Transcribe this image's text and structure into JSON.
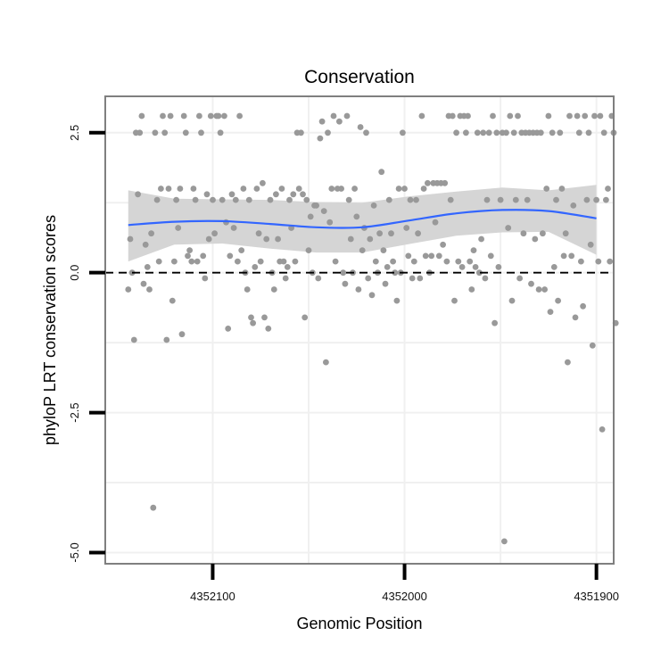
{
  "chart_data": {
    "type": "scatter",
    "title": "Conservation",
    "xlabel": "Genomic Position",
    "ylabel": "phyloP LRT conservation scores",
    "x_reversed": true,
    "xlim": [
      4352156,
      4351891
    ],
    "ylim": [
      -5.2,
      3.15
    ],
    "x_ticks": [
      4352100,
      4352000,
      4351900
    ],
    "y_ticks": [
      2.5,
      0.0,
      -2.5,
      -5.0
    ],
    "x_tick_labels": [
      "4352100",
      "4352000",
      "4351900"
    ],
    "y_tick_labels": [
      "2.5",
      "0.0",
      "-2.5",
      "-5.0"
    ],
    "grid": true,
    "reference_line": {
      "y": 0.0,
      "style": "dashed"
    },
    "colors": {
      "points": "#999999",
      "smooth": "#3366ff",
      "ribbon": "#d3d3d3",
      "frame": "#7f7f7f"
    },
    "smooth": {
      "x": [
        4352144,
        4352120,
        4352095,
        4352070,
        4352046,
        4352022,
        4351998,
        4351973,
        4351949,
        4351925,
        4351900
      ],
      "y": [
        0.85,
        0.91,
        0.92,
        0.87,
        0.81,
        0.81,
        0.93,
        1.06,
        1.12,
        1.1,
        0.97
      ],
      "upper": [
        1.47,
        1.32,
        1.31,
        1.3,
        1.26,
        1.25,
        1.36,
        1.45,
        1.52,
        1.47,
        1.57
      ],
      "lower": [
        0.2,
        0.5,
        0.52,
        0.43,
        0.36,
        0.36,
        0.51,
        0.66,
        0.72,
        0.73,
        0.32
      ]
    },
    "points": [
      {
        "x": 4352144,
        "y": -0.3
      },
      {
        "x": 4352143,
        "y": 0.6
      },
      {
        "x": 4352142,
        "y": 0.0
      },
      {
        "x": 4352141,
        "y": -1.2
      },
      {
        "x": 4352140,
        "y": 2.5
      },
      {
        "x": 4352139,
        "y": 1.4
      },
      {
        "x": 4352138,
        "y": 2.5
      },
      {
        "x": 4352137,
        "y": 2.8
      },
      {
        "x": 4352136,
        "y": -0.2
      },
      {
        "x": 4352135,
        "y": 0.5
      },
      {
        "x": 4352134,
        "y": 0.1
      },
      {
        "x": 4352133,
        "y": -0.3
      },
      {
        "x": 4352132,
        "y": 0.7
      },
      {
        "x": 4352131,
        "y": -4.2
      },
      {
        "x": 4352130,
        "y": 2.5
      },
      {
        "x": 4352129,
        "y": 1.3
      },
      {
        "x": 4352128,
        "y": 0.2
      },
      {
        "x": 4352127,
        "y": 1.5
      },
      {
        "x": 4352126,
        "y": 2.8
      },
      {
        "x": 4352125,
        "y": 2.5
      },
      {
        "x": 4352124,
        "y": -1.2
      },
      {
        "x": 4352123,
        "y": 1.5
      },
      {
        "x": 4352122,
        "y": 2.8
      },
      {
        "x": 4352121,
        "y": -0.5
      },
      {
        "x": 4352120,
        "y": 0.2
      },
      {
        "x": 4352119,
        "y": 1.3
      },
      {
        "x": 4352118,
        "y": 0.8
      },
      {
        "x": 4352117,
        "y": 1.5
      },
      {
        "x": 4352116,
        "y": -1.1
      },
      {
        "x": 4352115,
        "y": 2.8
      },
      {
        "x": 4352114,
        "y": 2.5
      },
      {
        "x": 4352113,
        "y": 0.3
      },
      {
        "x": 4352112,
        "y": 0.4
      },
      {
        "x": 4352111,
        "y": 0.2
      },
      {
        "x": 4352110,
        "y": 1.5
      },
      {
        "x": 4352109,
        "y": 1.3
      },
      {
        "x": 4352108,
        "y": 0.2
      },
      {
        "x": 4352107,
        "y": 2.8
      },
      {
        "x": 4352106,
        "y": 2.5
      },
      {
        "x": 4352105,
        "y": 0.3
      },
      {
        "x": 4352104,
        "y": -0.1
      },
      {
        "x": 4352103,
        "y": 1.4
      },
      {
        "x": 4352102,
        "y": 0.6
      },
      {
        "x": 4352101,
        "y": 2.8
      },
      {
        "x": 4352100,
        "y": 1.3
      },
      {
        "x": 4352099,
        "y": 0.7
      },
      {
        "x": 4352098,
        "y": 2.8
      },
      {
        "x": 4352097,
        "y": 2.8
      },
      {
        "x": 4352096,
        "y": 2.5
      },
      {
        "x": 4352095,
        "y": 1.3
      },
      {
        "x": 4352094,
        "y": 2.8
      },
      {
        "x": 4352093,
        "y": 0.9
      },
      {
        "x": 4352092,
        "y": -1.0
      },
      {
        "x": 4352091,
        "y": 0.3
      },
      {
        "x": 4352090,
        "y": 1.4
      },
      {
        "x": 4352089,
        "y": 0.8
      },
      {
        "x": 4352088,
        "y": 1.3
      },
      {
        "x": 4352087,
        "y": 0.2
      },
      {
        "x": 4352086,
        "y": 2.8
      },
      {
        "x": 4352085,
        "y": 0.4
      },
      {
        "x": 4352084,
        "y": 1.5
      },
      {
        "x": 4352083,
        "y": 0.0
      },
      {
        "x": 4352082,
        "y": -0.3
      },
      {
        "x": 4352081,
        "y": 1.3
      },
      {
        "x": 4352080,
        "y": -0.8
      },
      {
        "x": 4352079,
        "y": -0.9
      },
      {
        "x": 4352078,
        "y": 0.1
      },
      {
        "x": 4352077,
        "y": 1.5
      },
      {
        "x": 4352076,
        "y": 0.7
      },
      {
        "x": 4352075,
        "y": 0.2
      },
      {
        "x": 4352074,
        "y": 1.6
      },
      {
        "x": 4352073,
        "y": -0.8
      },
      {
        "x": 4352072,
        "y": 0.6
      },
      {
        "x": 4352071,
        "y": -1.0
      },
      {
        "x": 4352070,
        "y": 1.3
      },
      {
        "x": 4352069,
        "y": 0.0
      },
      {
        "x": 4352068,
        "y": -0.3
      },
      {
        "x": 4352067,
        "y": 1.4
      },
      {
        "x": 4352066,
        "y": 0.6
      },
      {
        "x": 4352065,
        "y": 0.2
      },
      {
        "x": 4352064,
        "y": 1.5
      },
      {
        "x": 4352063,
        "y": 0.2
      },
      {
        "x": 4352062,
        "y": -0.1
      },
      {
        "x": 4352061,
        "y": 0.1
      },
      {
        "x": 4352060,
        "y": 1.3
      },
      {
        "x": 4352059,
        "y": 0.8
      },
      {
        "x": 4352058,
        "y": 1.4
      },
      {
        "x": 4352057,
        "y": 0.2
      },
      {
        "x": 4352056,
        "y": 2.5
      },
      {
        "x": 4352055,
        "y": 1.5
      },
      {
        "x": 4352054,
        "y": 2.5
      },
      {
        "x": 4352053,
        "y": 1.4
      },
      {
        "x": 4352052,
        "y": -0.8
      },
      {
        "x": 4352051,
        "y": 1.3
      },
      {
        "x": 4352050,
        "y": 0.4
      },
      {
        "x": 4352049,
        "y": 1.0
      },
      {
        "x": 4352048,
        "y": 0.0
      },
      {
        "x": 4352047,
        "y": 1.2
      },
      {
        "x": 4352046,
        "y": 1.2
      },
      {
        "x": 4352045,
        "y": -0.1
      },
      {
        "x": 4352044,
        "y": 2.4
      },
      {
        "x": 4352043,
        "y": 2.7
      },
      {
        "x": 4352042,
        "y": 1.1
      },
      {
        "x": 4352041,
        "y": -1.6
      },
      {
        "x": 4352040,
        "y": 2.5
      },
      {
        "x": 4352039,
        "y": 0.9
      },
      {
        "x": 4352038,
        "y": 1.5
      },
      {
        "x": 4352037,
        "y": 2.8
      },
      {
        "x": 4352036,
        "y": 0.2
      },
      {
        "x": 4352035,
        "y": 1.5
      },
      {
        "x": 4352034,
        "y": 2.7
      },
      {
        "x": 4352033,
        "y": 1.5
      },
      {
        "x": 4352032,
        "y": 0.0
      },
      {
        "x": 4352031,
        "y": -0.2
      },
      {
        "x": 4352030,
        "y": 2.8
      },
      {
        "x": 4352029,
        "y": 1.3
      },
      {
        "x": 4352028,
        "y": 0.6
      },
      {
        "x": 4352027,
        "y": 0.0
      },
      {
        "x": 4352026,
        "y": 1.5
      },
      {
        "x": 4352025,
        "y": 1.0
      },
      {
        "x": 4352024,
        "y": -0.3
      },
      {
        "x": 4352023,
        "y": 2.6
      },
      {
        "x": 4352022,
        "y": 0.4
      },
      {
        "x": 4352021,
        "y": 0.8
      },
      {
        "x": 4352020,
        "y": 2.5
      },
      {
        "x": 4352019,
        "y": -0.1
      },
      {
        "x": 4352018,
        "y": 0.6
      },
      {
        "x": 4352017,
        "y": -0.4
      },
      {
        "x": 4352016,
        "y": 1.2
      },
      {
        "x": 4352015,
        "y": 0.2
      },
      {
        "x": 4352014,
        "y": 0.0
      },
      {
        "x": 4352013,
        "y": 0.7
      },
      {
        "x": 4352012,
        "y": 1.8
      },
      {
        "x": 4352011,
        "y": 0.4
      },
      {
        "x": 4352010,
        "y": -0.2
      },
      {
        "x": 4352009,
        "y": 0.1
      },
      {
        "x": 4352008,
        "y": 1.3
      },
      {
        "x": 4352007,
        "y": 0.7
      },
      {
        "x": 4352006,
        "y": 0.2
      },
      {
        "x": 4352005,
        "y": 0.0
      },
      {
        "x": 4352004,
        "y": -0.5
      },
      {
        "x": 4352003,
        "y": 1.5
      },
      {
        "x": 4352002,
        "y": 0.0
      },
      {
        "x": 4352001,
        "y": 2.5
      },
      {
        "x": 4352000,
        "y": 1.5
      },
      {
        "x": 4351999,
        "y": 0.8
      },
      {
        "x": 4351998,
        "y": 0.3
      },
      {
        "x": 4351997,
        "y": 1.3
      },
      {
        "x": 4351996,
        "y": -0.1
      },
      {
        "x": 4351995,
        "y": 0.2
      },
      {
        "x": 4351994,
        "y": 1.3
      },
      {
        "x": 4351993,
        "y": 0.7
      },
      {
        "x": 4351992,
        "y": -0.1
      },
      {
        "x": 4351991,
        "y": 2.8
      },
      {
        "x": 4351990,
        "y": 1.5
      },
      {
        "x": 4351989,
        "y": 0.3
      },
      {
        "x": 4351988,
        "y": 1.6
      },
      {
        "x": 4351987,
        "y": 0.0
      },
      {
        "x": 4351986,
        "y": 0.3
      },
      {
        "x": 4351985,
        "y": 1.6
      },
      {
        "x": 4351984,
        "y": 0.9
      },
      {
        "x": 4351983,
        "y": 1.6
      },
      {
        "x": 4351982,
        "y": 0.3
      },
      {
        "x": 4351981,
        "y": 1.6
      },
      {
        "x": 4351980,
        "y": 0.5
      },
      {
        "x": 4351979,
        "y": 1.6
      },
      {
        "x": 4351978,
        "y": 0.2
      },
      {
        "x": 4351977,
        "y": 2.8
      },
      {
        "x": 4351976,
        "y": 1.3
      },
      {
        "x": 4351975,
        "y": 2.8
      },
      {
        "x": 4351974,
        "y": -0.5
      },
      {
        "x": 4351973,
        "y": 2.5
      },
      {
        "x": 4351972,
        "y": 0.2
      },
      {
        "x": 4351971,
        "y": 2.8
      },
      {
        "x": 4351970,
        "y": 0.1
      },
      {
        "x": 4351969,
        "y": 2.8
      },
      {
        "x": 4351968,
        "y": 2.5
      },
      {
        "x": 4351967,
        "y": 2.8
      },
      {
        "x": 4351966,
        "y": 0.2
      },
      {
        "x": 4351965,
        "y": -0.3
      },
      {
        "x": 4351964,
        "y": 0.4
      },
      {
        "x": 4351963,
        "y": 0.1
      },
      {
        "x": 4351962,
        "y": 2.5
      },
      {
        "x": 4351961,
        "y": 0.0
      },
      {
        "x": 4351960,
        "y": 0.6
      },
      {
        "x": 4351959,
        "y": 2.5
      },
      {
        "x": 4351958,
        "y": -0.1
      },
      {
        "x": 4351957,
        "y": 1.3
      },
      {
        "x": 4351956,
        "y": 2.5
      },
      {
        "x": 4351955,
        "y": 0.3
      },
      {
        "x": 4351954,
        "y": 2.8
      },
      {
        "x": 4351953,
        "y": -0.9
      },
      {
        "x": 4351952,
        "y": 2.5
      },
      {
        "x": 4351951,
        "y": 0.1
      },
      {
        "x": 4351950,
        "y": 1.3
      },
      {
        "x": 4351949,
        "y": 2.5
      },
      {
        "x": 4351948,
        "y": -4.8
      },
      {
        "x": 4351947,
        "y": 2.5
      },
      {
        "x": 4351946,
        "y": 0.8
      },
      {
        "x": 4351945,
        "y": 2.8
      },
      {
        "x": 4351944,
        "y": -0.5
      },
      {
        "x": 4351943,
        "y": 2.5
      },
      {
        "x": 4351942,
        "y": 1.3
      },
      {
        "x": 4351941,
        "y": 2.8
      },
      {
        "x": 4351940,
        "y": -0.1
      },
      {
        "x": 4351939,
        "y": 2.5
      },
      {
        "x": 4351938,
        "y": 0.7
      },
      {
        "x": 4351937,
        "y": 2.5
      },
      {
        "x": 4351936,
        "y": 1.3
      },
      {
        "x": 4351935,
        "y": 2.5
      },
      {
        "x": 4351934,
        "y": -0.2
      },
      {
        "x": 4351933,
        "y": 2.5
      },
      {
        "x": 4351932,
        "y": 0.6
      },
      {
        "x": 4351931,
        "y": 2.5
      },
      {
        "x": 4351930,
        "y": -0.3
      },
      {
        "x": 4351929,
        "y": 2.5
      },
      {
        "x": 4351928,
        "y": 0.7
      },
      {
        "x": 4351927,
        "y": -0.3
      },
      {
        "x": 4351926,
        "y": 1.5
      },
      {
        "x": 4351925,
        "y": 2.8
      },
      {
        "x": 4351924,
        "y": -0.7
      },
      {
        "x": 4351923,
        "y": 2.5
      },
      {
        "x": 4351922,
        "y": 0.1
      },
      {
        "x": 4351921,
        "y": 1.3
      },
      {
        "x": 4351920,
        "y": -0.5
      },
      {
        "x": 4351919,
        "y": 2.5
      },
      {
        "x": 4351918,
        "y": 1.5
      },
      {
        "x": 4351917,
        "y": 0.3
      },
      {
        "x": 4351916,
        "y": 0.7
      },
      {
        "x": 4351915,
        "y": -1.6
      },
      {
        "x": 4351914,
        "y": 2.8
      },
      {
        "x": 4351913,
        "y": 0.3
      },
      {
        "x": 4351912,
        "y": 1.2
      },
      {
        "x": 4351911,
        "y": -0.8
      },
      {
        "x": 4351910,
        "y": 2.8
      },
      {
        "x": 4351909,
        "y": 2.5
      },
      {
        "x": 4351908,
        "y": 0.2
      },
      {
        "x": 4351907,
        "y": -0.6
      },
      {
        "x": 4351906,
        "y": 2.8
      },
      {
        "x": 4351905,
        "y": 1.3
      },
      {
        "x": 4351904,
        "y": 2.5
      },
      {
        "x": 4351903,
        "y": 0.5
      },
      {
        "x": 4351902,
        "y": -1.3
      },
      {
        "x": 4351901,
        "y": 2.8
      },
      {
        "x": 4351900,
        "y": 1.3
      },
      {
        "x": 4351899,
        "y": 0.2
      },
      {
        "x": 4351898,
        "y": 2.8
      },
      {
        "x": 4351897,
        "y": -2.8
      },
      {
        "x": 4351896,
        "y": 2.5
      },
      {
        "x": 4351895,
        "y": 1.3
      },
      {
        "x": 4351894,
        "y": 1.5
      },
      {
        "x": 4351893,
        "y": 0.2
      },
      {
        "x": 4351892,
        "y": 2.8
      },
      {
        "x": 4351891,
        "y": 2.5
      },
      {
        "x": 4351890,
        "y": -0.9
      }
    ]
  }
}
